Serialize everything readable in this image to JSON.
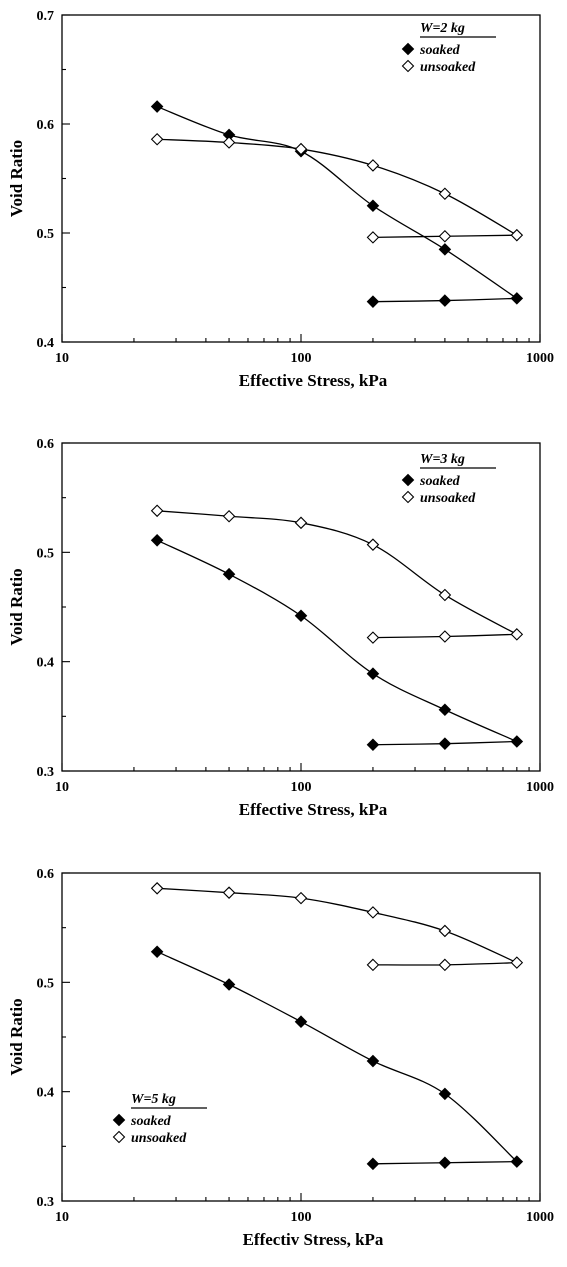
{
  "chart_data": [
    {
      "type": "scatter",
      "xlabel": "Effective Stress, kPa",
      "ylabel": "Void Ratio",
      "x_scale": "log",
      "xlim": [
        10,
        1000
      ],
      "ylim": [
        0.4,
        0.7
      ],
      "x_ticks": [
        "10",
        "100",
        "1000"
      ],
      "y_ticks": [
        "0.4",
        "0.5",
        "0.6",
        "0.7"
      ],
      "grid": false,
      "legend": {
        "title": "W=2 kg",
        "placement": "top-right",
        "entries": [
          {
            "label": "soaked",
            "marker": "filled-diamond"
          },
          {
            "label": "unsoaked",
            "marker": "open-diamond"
          }
        ]
      },
      "series": [
        {
          "name": "soaked",
          "loading": {
            "x": [
              25,
              50,
              100,
              200,
              400,
              800
            ],
            "y": [
              0.616,
              0.59,
              0.575,
              0.525,
              0.485,
              0.44
            ]
          },
          "unloading": {
            "x": [
              800,
              400,
              200
            ],
            "y": [
              0.44,
              0.438,
              0.437
            ]
          }
        },
        {
          "name": "unsoaked",
          "loading": {
            "x": [
              25,
              50,
              100,
              200,
              400,
              800
            ],
            "y": [
              0.586,
              0.583,
              0.577,
              0.562,
              0.536,
              0.498
            ]
          },
          "unloading": {
            "x": [
              800,
              400,
              200
            ],
            "y": [
              0.498,
              0.497,
              0.496
            ]
          }
        }
      ]
    },
    {
      "type": "scatter",
      "xlabel": "Effective Stress, kPa",
      "ylabel": "Void Ratio",
      "x_scale": "log",
      "xlim": [
        10,
        1000
      ],
      "ylim": [
        0.3,
        0.6
      ],
      "x_ticks": [
        "10",
        "100",
        "1000"
      ],
      "y_ticks": [
        "0.3",
        "0.4",
        "0.5",
        "0.6"
      ],
      "grid": false,
      "legend": {
        "title": "W=3 kg",
        "placement": "top-right",
        "entries": [
          {
            "label": "soaked",
            "marker": "filled-diamond"
          },
          {
            "label": "unsoaked",
            "marker": "open-diamond"
          }
        ]
      },
      "series": [
        {
          "name": "soaked",
          "loading": {
            "x": [
              25,
              50,
              100,
              200,
              400,
              800
            ],
            "y": [
              0.511,
              0.48,
              0.442,
              0.389,
              0.356,
              0.327
            ]
          },
          "unloading": {
            "x": [
              800,
              400,
              200
            ],
            "y": [
              0.327,
              0.325,
              0.324
            ]
          }
        },
        {
          "name": "unsoaked",
          "loading": {
            "x": [
              25,
              50,
              100,
              200,
              400,
              800
            ],
            "y": [
              0.538,
              0.533,
              0.527,
              0.507,
              0.461,
              0.425
            ]
          },
          "unloading": {
            "x": [
              800,
              400,
              200
            ],
            "y": [
              0.425,
              0.423,
              0.422
            ]
          }
        }
      ]
    },
    {
      "type": "scatter",
      "xlabel": "Effectiv Stress, kPa",
      "ylabel": "Void Ratio",
      "x_scale": "log",
      "xlim": [
        10,
        1000
      ],
      "ylim": [
        0.3,
        0.6
      ],
      "x_ticks": [
        "10",
        "100",
        "1000"
      ],
      "y_ticks": [
        "0.3",
        "0.4",
        "0.5",
        "0.6"
      ],
      "grid": false,
      "legend": {
        "title": "W=5 kg",
        "placement": "bottom-left",
        "entries": [
          {
            "label": "soaked",
            "marker": "filled-diamond"
          },
          {
            "label": "unsoaked",
            "marker": "open-diamond"
          }
        ]
      },
      "series": [
        {
          "name": "soaked",
          "loading": {
            "x": [
              25,
              50,
              100,
              200,
              400,
              800
            ],
            "y": [
              0.528,
              0.498,
              0.464,
              0.428,
              0.398,
              0.336
            ]
          },
          "unloading": {
            "x": [
              800,
              400,
              200
            ],
            "y": [
              0.336,
              0.335,
              0.334
            ]
          }
        },
        {
          "name": "unsoaked",
          "loading": {
            "x": [
              25,
              50,
              100,
              200,
              400,
              800
            ],
            "y": [
              0.586,
              0.582,
              0.577,
              0.564,
              0.547,
              0.518
            ]
          },
          "unloading": {
            "x": [
              800,
              400,
              200
            ],
            "y": [
              0.518,
              0.516,
              0.516
            ]
          }
        }
      ]
    }
  ]
}
